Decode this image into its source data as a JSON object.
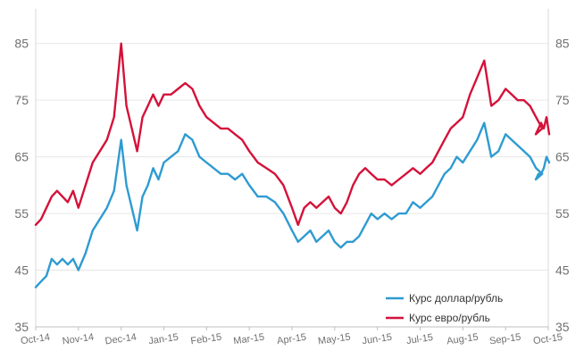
{
  "chart_data": {
    "type": "line",
    "title": "",
    "xlabel": "",
    "ylabel": "",
    "ylim": [
      35,
      90
    ],
    "yticks": [
      35,
      45,
      55,
      65,
      75,
      85
    ],
    "ytick_labels": [
      "35",
      "45",
      "55",
      "65",
      "75",
      "85"
    ],
    "dual_y_axis": true,
    "grid": "horizontal",
    "legend_position": "bottom-right",
    "x_domain": [
      "Oct-14",
      "Oct-15"
    ],
    "x_ticks": [
      "Oct-14",
      "Nov-14",
      "Dec-14",
      "Jan-15",
      "Feb-15",
      "Mar-15",
      "Apr-15",
      "May-15",
      "Jun-15",
      "Jul-15",
      "Aug-15",
      "Sep-15",
      "Oct-15"
    ],
    "series": [
      {
        "name": "Курс доллар/рубль",
        "color": "#2e9bd1",
        "points": [
          [
            "Oct-14",
            42.0
          ],
          [
            "Oct-14",
            43.0
          ],
          [
            "Oct-14",
            44.0
          ],
          [
            "Oct-14",
            47.0
          ],
          [
            "Oct-14",
            46.0
          ],
          [
            "Oct-14",
            47.0
          ],
          [
            "Oct-14",
            46.0
          ],
          [
            "Oct-14",
            47.0
          ],
          [
            "Nov-14",
            45.0
          ],
          [
            "Nov-14",
            48.0
          ],
          [
            "Nov-14",
            52.0
          ],
          [
            "Nov-14",
            54.0
          ],
          [
            "Nov-14",
            56.0
          ],
          [
            "Nov-14",
            59.0
          ],
          [
            "Dec-14",
            68.0
          ],
          [
            "Dec-14",
            60.0
          ],
          [
            "Dec-14",
            56.0
          ],
          [
            "Dec-14",
            52.0
          ],
          [
            "Dec-14",
            58.0
          ],
          [
            "Dec-14",
            60.0
          ],
          [
            "Dec-14",
            63.0
          ],
          [
            "Dec-14",
            61.0
          ],
          [
            "Jan-15",
            64.0
          ],
          [
            "Jan-15",
            65.0
          ],
          [
            "Jan-15",
            66.0
          ],
          [
            "Jan-15",
            69.0
          ],
          [
            "Jan-15",
            68.0
          ],
          [
            "Jan-15",
            65.0
          ],
          [
            "Feb-15",
            64.0
          ],
          [
            "Feb-15",
            63.0
          ],
          [
            "Feb-15",
            62.0
          ],
          [
            "Feb-15",
            62.0
          ],
          [
            "Feb-15",
            61.0
          ],
          [
            "Feb-15",
            62.0
          ],
          [
            "Mar-15",
            60.0
          ],
          [
            "Mar-15",
            58.0
          ],
          [
            "Mar-15",
            58.0
          ],
          [
            "Mar-15",
            57.0
          ],
          [
            "Mar-15",
            55.0
          ],
          [
            "Apr-15",
            52.0
          ],
          [
            "Apr-15",
            50.0
          ],
          [
            "Apr-15",
            51.0
          ],
          [
            "Apr-15",
            52.0
          ],
          [
            "Apr-15",
            50.0
          ],
          [
            "Apr-15",
            51.0
          ],
          [
            "Apr-15",
            52.0
          ],
          [
            "May-15",
            50.0
          ],
          [
            "May-15",
            49.0
          ],
          [
            "May-15",
            50.0
          ],
          [
            "May-15",
            50.0
          ],
          [
            "May-15",
            51.0
          ],
          [
            "May-15",
            53.0
          ],
          [
            "May-15",
            55.0
          ],
          [
            "Jun-15",
            54.0
          ],
          [
            "Jun-15",
            55.0
          ],
          [
            "Jun-15",
            54.0
          ],
          [
            "Jun-15",
            55.0
          ],
          [
            "Jun-15",
            55.0
          ],
          [
            "Jun-15",
            57.0
          ],
          [
            "Jul-15",
            56.0
          ],
          [
            "Jul-15",
            57.0
          ],
          [
            "Jul-15",
            58.0
          ],
          [
            "Jul-15",
            60.0
          ],
          [
            "Jul-15",
            62.0
          ],
          [
            "Jul-15",
            63.0
          ],
          [
            "Jul-15",
            65.0
          ],
          [
            "Aug-15",
            64.0
          ],
          [
            "Aug-15",
            66.0
          ],
          [
            "Aug-15",
            68.0
          ],
          [
            "Aug-15",
            71.0
          ],
          [
            "Aug-15",
            65.0
          ],
          [
            "Aug-15",
            66.0
          ],
          [
            "Sep-15",
            69.0
          ],
          [
            "Sep-15",
            68.0
          ],
          [
            "Sep-15",
            67.0
          ],
          [
            "Sep-15",
            66.0
          ],
          [
            "Sep-15",
            65.0
          ],
          [
            "Sep-15",
            63.0
          ],
          [
            "Sep-15",
            62.0
          ],
          [
            "Oct-15",
            61.0
          ],
          [
            "Oct-15",
            62.0
          ],
          [
            "Oct-15",
            62.0
          ],
          [
            "Oct-15",
            63.0
          ],
          [
            "Oct-15",
            65.0
          ],
          [
            "Oct-15",
            64.0
          ]
        ]
      },
      {
        "name": "Курс евро/рубль",
        "color": "#d4123a",
        "points": [
          [
            "Oct-14",
            53.0
          ],
          [
            "Oct-14",
            54.0
          ],
          [
            "Oct-14",
            56.0
          ],
          [
            "Oct-14",
            58.0
          ],
          [
            "Oct-14",
            59.0
          ],
          [
            "Oct-14",
            58.0
          ],
          [
            "Oct-14",
            57.0
          ],
          [
            "Oct-14",
            59.0
          ],
          [
            "Nov-14",
            56.0
          ],
          [
            "Nov-14",
            60.0
          ],
          [
            "Nov-14",
            64.0
          ],
          [
            "Nov-14",
            66.0
          ],
          [
            "Nov-14",
            68.0
          ],
          [
            "Nov-14",
            72.0
          ],
          [
            "Dec-14",
            85.0
          ],
          [
            "Dec-14",
            74.0
          ],
          [
            "Dec-14",
            70.0
          ],
          [
            "Dec-14",
            66.0
          ],
          [
            "Dec-14",
            72.0
          ],
          [
            "Dec-14",
            74.0
          ],
          [
            "Dec-14",
            76.0
          ],
          [
            "Dec-14",
            74.0
          ],
          [
            "Jan-15",
            76.0
          ],
          [
            "Jan-15",
            76.0
          ],
          [
            "Jan-15",
            77.0
          ],
          [
            "Jan-15",
            78.0
          ],
          [
            "Jan-15",
            77.0
          ],
          [
            "Jan-15",
            74.0
          ],
          [
            "Feb-15",
            72.0
          ],
          [
            "Feb-15",
            71.0
          ],
          [
            "Feb-15",
            70.0
          ],
          [
            "Feb-15",
            70.0
          ],
          [
            "Feb-15",
            69.0
          ],
          [
            "Feb-15",
            68.0
          ],
          [
            "Mar-15",
            66.0
          ],
          [
            "Mar-15",
            64.0
          ],
          [
            "Mar-15",
            63.0
          ],
          [
            "Mar-15",
            62.0
          ],
          [
            "Mar-15",
            60.0
          ],
          [
            "Apr-15",
            56.0
          ],
          [
            "Apr-15",
            53.0
          ],
          [
            "Apr-15",
            56.0
          ],
          [
            "Apr-15",
            57.0
          ],
          [
            "Apr-15",
            56.0
          ],
          [
            "Apr-15",
            57.0
          ],
          [
            "Apr-15",
            58.0
          ],
          [
            "May-15",
            56.0
          ],
          [
            "May-15",
            55.0
          ],
          [
            "May-15",
            57.0
          ],
          [
            "May-15",
            60.0
          ],
          [
            "May-15",
            62.0
          ],
          [
            "May-15",
            63.0
          ],
          [
            "May-15",
            62.0
          ],
          [
            "Jun-15",
            61.0
          ],
          [
            "Jun-15",
            61.0
          ],
          [
            "Jun-15",
            60.0
          ],
          [
            "Jun-15",
            61.0
          ],
          [
            "Jun-15",
            62.0
          ],
          [
            "Jun-15",
            63.0
          ],
          [
            "Jul-15",
            62.0
          ],
          [
            "Jul-15",
            63.0
          ],
          [
            "Jul-15",
            64.0
          ],
          [
            "Jul-15",
            66.0
          ],
          [
            "Jul-15",
            68.0
          ],
          [
            "Jul-15",
            70.0
          ],
          [
            "Jul-15",
            71.0
          ],
          [
            "Aug-15",
            72.0
          ],
          [
            "Aug-15",
            76.0
          ],
          [
            "Aug-15",
            79.0
          ],
          [
            "Aug-15",
            82.0
          ],
          [
            "Aug-15",
            74.0
          ],
          [
            "Aug-15",
            75.0
          ],
          [
            "Sep-15",
            77.0
          ],
          [
            "Sep-15",
            76.0
          ],
          [
            "Sep-15",
            75.0
          ],
          [
            "Sep-15",
            75.0
          ],
          [
            "Sep-15",
            74.0
          ],
          [
            "Sep-15",
            72.0
          ],
          [
            "Sep-15",
            70.0
          ],
          [
            "Oct-15",
            69.0
          ],
          [
            "Oct-15",
            70.0
          ],
          [
            "Oct-15",
            71.0
          ],
          [
            "Oct-15",
            70.0
          ],
          [
            "Oct-15",
            72.0
          ],
          [
            "Oct-15",
            69.0
          ]
        ]
      }
    ],
    "legend": [
      "Курс доллар/рубль",
      "Курс евро/рубль"
    ],
    "colors": {
      "gridline": "#e6e6e6",
      "tick_text": "#707070"
    }
  }
}
